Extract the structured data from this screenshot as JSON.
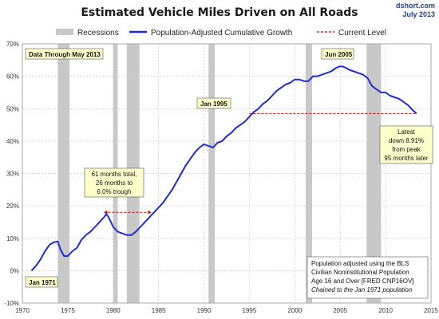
{
  "chart_data": {
    "type": "line",
    "title": "Estimated Vehicle Miles Driven on All Roads",
    "source": "dshort.com",
    "date": "July 2013",
    "xlim": [
      1970,
      2015
    ],
    "ylim": [
      -10,
      70
    ],
    "x_ticks": [
      1970,
      1975,
      1980,
      1985,
      1990,
      1995,
      2000,
      2005,
      2010,
      2015
    ],
    "y_ticks": [
      -10,
      0,
      10,
      20,
      30,
      40,
      50,
      60,
      70
    ],
    "x_tick_labels": [
      "1970",
      "1975",
      "1980",
      "1985",
      "1990",
      "1995",
      "2000",
      "2005",
      "2010",
      "2015"
    ],
    "y_tick_labels": [
      "-10%",
      "0%",
      "10%",
      "20%",
      "30%",
      "40%",
      "50%",
      "60%",
      "70%"
    ],
    "grid": true,
    "legend": {
      "placement": "top",
      "recessions": "Recessions",
      "series": "Population-Adjusted Cumulative Growth",
      "current": "Current Level"
    },
    "colors": {
      "series": "#1f2bd6",
      "current": "#cc0000",
      "recession": "#c8c8c8",
      "callout_fill": "#ffffcc"
    },
    "recessions": [
      [
        1973.9,
        1975.2
      ],
      [
        1980.0,
        1980.5
      ],
      [
        1981.5,
        1982.9
      ],
      [
        1990.5,
        1991.2
      ],
      [
        2001.2,
        2001.9
      ],
      [
        2007.9,
        2009.5
      ]
    ],
    "series": [
      {
        "name": "Population-Adjusted Cumulative Growth",
        "x": [
          1971.0,
          1971.5,
          1972.0,
          1972.5,
          1973.0,
          1973.5,
          1973.9,
          1974.2,
          1974.6,
          1975.0,
          1975.5,
          1976.0,
          1976.5,
          1977.0,
          1977.5,
          1978.0,
          1978.5,
          1979.0,
          1979.25,
          1979.5,
          1980.0,
          1980.5,
          1981.0,
          1981.5,
          1982.0,
          1982.5,
          1983.0,
          1983.5,
          1984.0,
          1984.5,
          1985.0,
          1985.5,
          1986.0,
          1986.5,
          1987.0,
          1987.5,
          1988.0,
          1988.5,
          1989.0,
          1989.5,
          1990.0,
          1990.5,
          1991.0,
          1991.5,
          1992.0,
          1992.5,
          1993.0,
          1993.5,
          1994.0,
          1994.5,
          1995.0,
          1995.5,
          1996.0,
          1996.5,
          1997.0,
          1997.5,
          1998.0,
          1998.5,
          1999.0,
          1999.5,
          2000.0,
          2000.5,
          2001.0,
          2001.5,
          2002.0,
          2002.5,
          2003.0,
          2003.5,
          2004.0,
          2004.5,
          2004.9,
          2005.3,
          2005.7,
          2006.0,
          2006.5,
          2007.0,
          2007.5,
          2008.0,
          2008.5,
          2009.0,
          2009.5,
          2010.0,
          2010.5,
          2011.0,
          2011.5,
          2012.0,
          2012.5,
          2013.0,
          2013.4
        ],
        "y": [
          0.0,
          1.5,
          3.5,
          6.0,
          8.0,
          8.8,
          9.0,
          6.5,
          4.5,
          4.5,
          6.0,
          7.0,
          9.5,
          11.0,
          12.0,
          13.5,
          15.0,
          16.5,
          17.5,
          16.5,
          13.5,
          12.0,
          11.5,
          11.0,
          11.0,
          12.0,
          13.5,
          15.0,
          16.5,
          18.0,
          19.5,
          21.0,
          23.0,
          25.0,
          27.5,
          30.0,
          32.5,
          34.5,
          36.5,
          38.0,
          39.0,
          38.5,
          38.0,
          39.5,
          40.0,
          41.5,
          42.5,
          44.0,
          45.0,
          46.0,
          47.5,
          49.0,
          50.0,
          51.5,
          52.5,
          54.0,
          55.5,
          56.5,
          57.5,
          58.0,
          59.0,
          59.0,
          58.5,
          58.5,
          60.0,
          60.0,
          60.5,
          61.0,
          61.5,
          62.5,
          63.0,
          63.0,
          62.5,
          62.0,
          61.5,
          61.0,
          60.5,
          59.5,
          57.0,
          56.0,
          55.0,
          55.0,
          54.0,
          53.5,
          53.0,
          52.0,
          51.0,
          49.5,
          48.5
        ]
      }
    ],
    "current_level": {
      "value": 48.5,
      "x_start": 1995.0,
      "x_end": 2013.4
    },
    "trough_span": {
      "value": 18.0,
      "x_start": 1979.0,
      "x_end": 1984.2
    },
    "annotations": {
      "data_through": "Data Through May 2013",
      "jan1971": "Jan 1971",
      "jan1995": "Jan 1995",
      "jun2005": "Jun 2005",
      "trough": [
        "61 months total,",
        "26 months to",
        "6.0% trough"
      ],
      "latest": [
        "Latest",
        "down 8.91%",
        "from peak",
        "95 months later"
      ],
      "note": [
        "Population adjusted using the BLS",
        "Civilian Noninstitutional Population",
        "Age 16 and Over [FRED CNP16OV]"
      ],
      "note_italic": "Chained to the Jan 1971 population"
    }
  }
}
